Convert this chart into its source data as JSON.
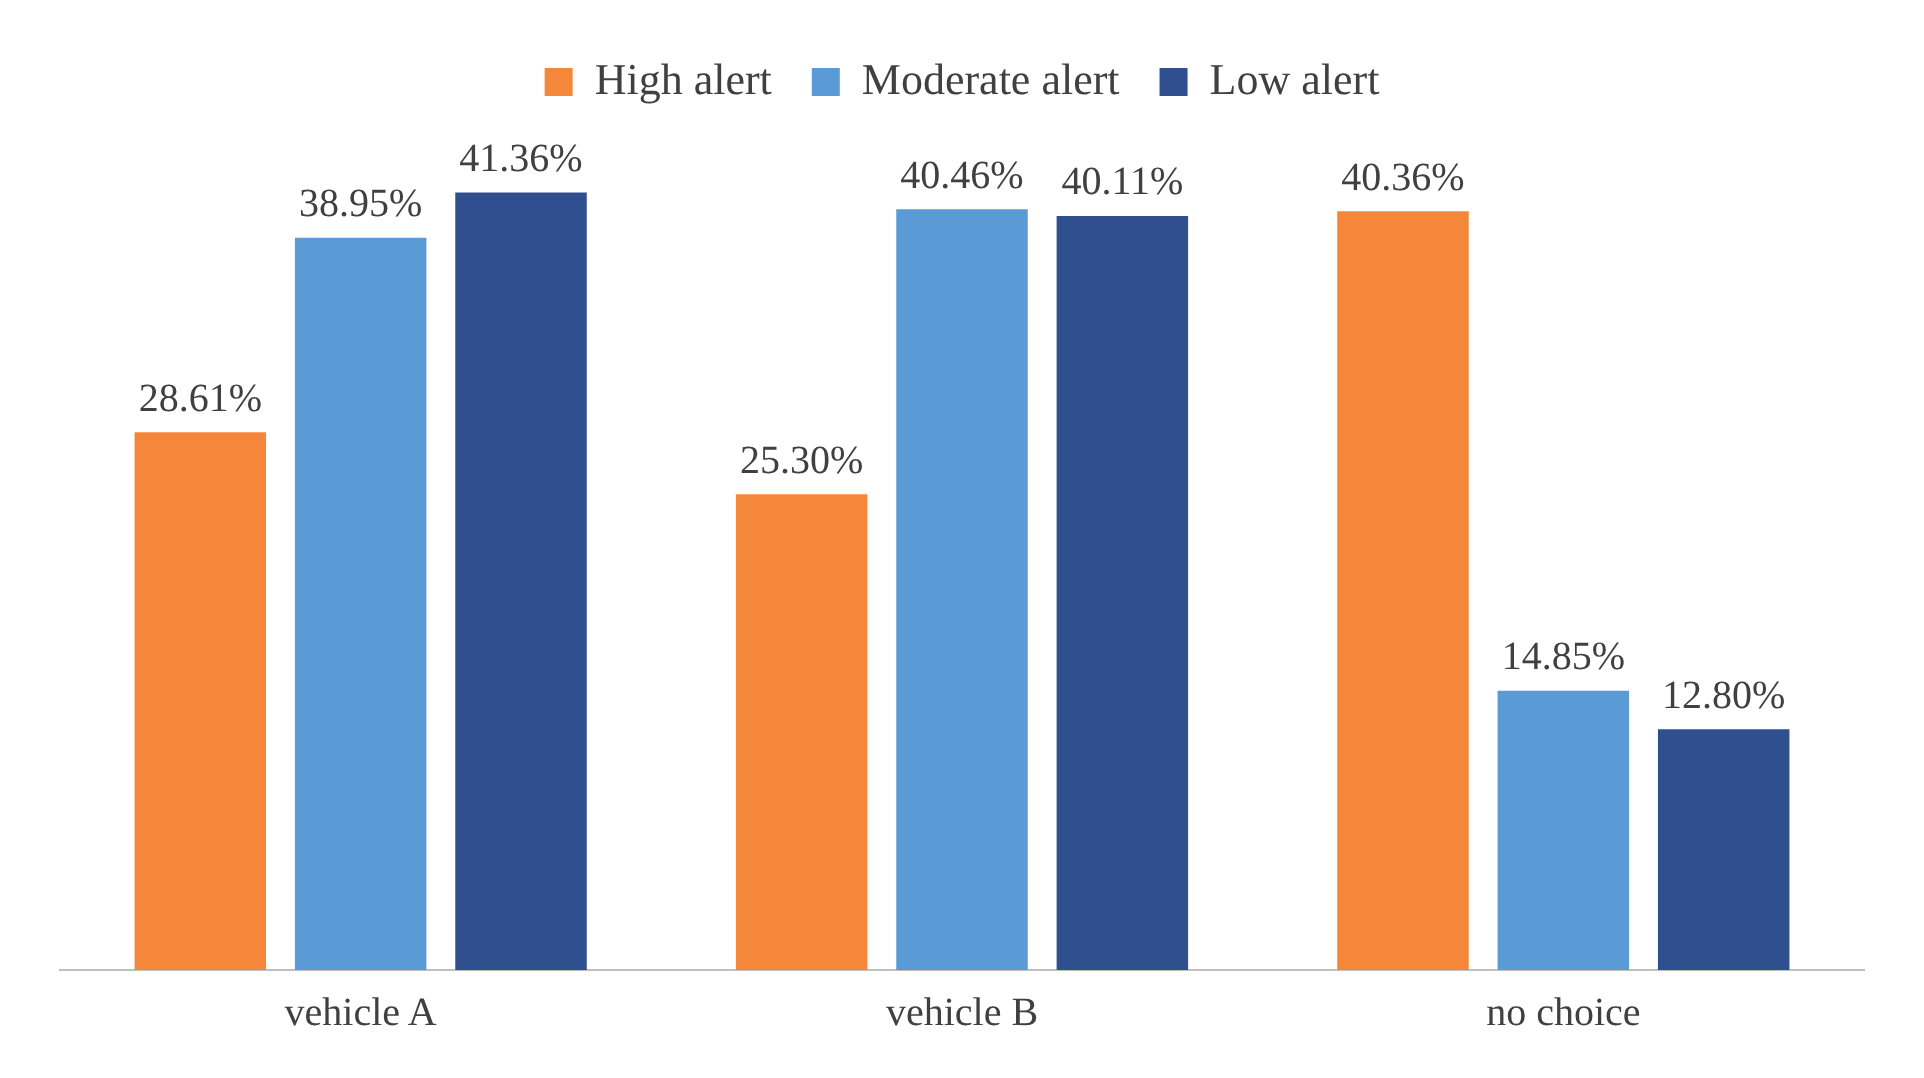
{
  "chart_data": {
    "type": "bar",
    "categories": [
      "vehicle A",
      "vehicle B",
      "no choice"
    ],
    "legend": "top",
    "grid": false,
    "series": [
      {
        "name": "High alert",
        "color": "#f4873a",
        "values": [
          28.61,
          25.3,
          40.36
        ],
        "value_labels": [
          "28.61%",
          "25.30%",
          "40.36%"
        ]
      },
      {
        "name": "Moderate alert",
        "color": "#5b9bd5",
        "values": [
          38.95,
          40.46,
          14.85
        ],
        "value_labels": [
          "38.95%",
          "40.46%",
          "14.85%"
        ]
      },
      {
        "name": "Low alert",
        "color": "#2f4f8f",
        "values": [
          41.36,
          40.11,
          12.8
        ],
        "value_labels": [
          "41.36%",
          "40.11%",
          "12.80%"
        ]
      }
    ]
  }
}
